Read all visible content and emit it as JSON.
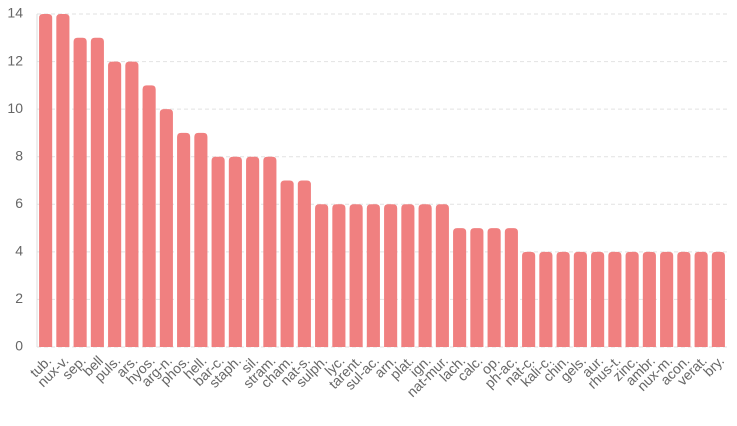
{
  "chart_data": {
    "type": "bar",
    "categories": [
      "tub.",
      "nux-v.",
      "sep.",
      "bell",
      "puls.",
      "ars.",
      "hyos.",
      "arg-n.",
      "phos.",
      "hell.",
      "bar-c.",
      "staph.",
      "sil.",
      "stram.",
      "cham.",
      "nat-s.",
      "sulph.",
      "lyc.",
      "tarent.",
      "sul-ac.",
      "arn.",
      "plat.",
      "ign.",
      "nat-mur.",
      "lach.",
      "calc.",
      "op.",
      "ph-ac.",
      "nat-c.",
      "kali-c.",
      "chin.",
      "gels.",
      "aur.",
      "rhus-t.",
      "zinc.",
      "ambr.",
      "nux-m.",
      "acon.",
      "verat.",
      "bry."
    ],
    "values": [
      14,
      14,
      13,
      13,
      12,
      12,
      11,
      10,
      9,
      9,
      8,
      8,
      8,
      8,
      7,
      7,
      6,
      6,
      6,
      6,
      6,
      6,
      6,
      6,
      5,
      5,
      5,
      5,
      4,
      4,
      4,
      4,
      4,
      4,
      4,
      4,
      4,
      4,
      4,
      4
    ],
    "color": "#f08080",
    "ylim": [
      0,
      14
    ],
    "yticks": [
      0,
      2,
      4,
      6,
      8,
      10,
      12,
      14
    ],
    "grid": true
  }
}
